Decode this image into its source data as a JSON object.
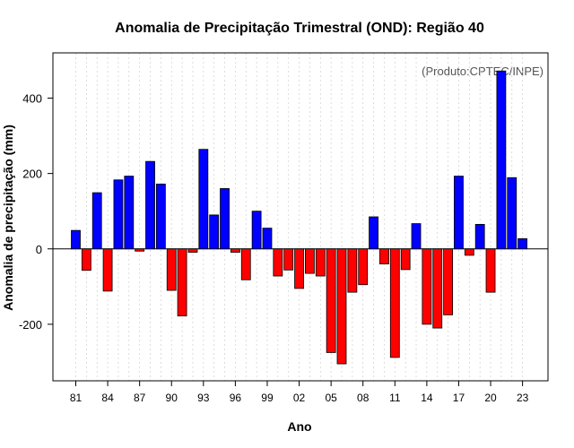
{
  "chart_data": {
    "type": "bar",
    "title": "Anomalia de Precipitação Trimestral (OND): Região 40",
    "xlabel": "Ano",
    "ylabel": "Anomalia de precipitação (mm)",
    "credit": "(Produto:CPTEC/INPE)",
    "ylim": [
      -350,
      520
    ],
    "y_ticks": [
      -200,
      0,
      200,
      400
    ],
    "x_tick_labels": [
      "81",
      "84",
      "87",
      "90",
      "93",
      "96",
      "99",
      "02",
      "05",
      "08",
      "11",
      "14",
      "17",
      "20",
      "23"
    ],
    "positive_color": "#0000ff",
    "negative_color": "#ff0000",
    "categories": [
      "1981",
      "1982",
      "1983",
      "1984",
      "1985",
      "1986",
      "1987",
      "1988",
      "1989",
      "1990",
      "1991",
      "1992",
      "1993",
      "1994",
      "1995",
      "1996",
      "1997",
      "1998",
      "1999",
      "2000",
      "2001",
      "2002",
      "2003",
      "2004",
      "2005",
      "2006",
      "2007",
      "2008",
      "2009",
      "2010",
      "2011",
      "2012",
      "2013",
      "2014",
      "2015",
      "2016",
      "2017",
      "2018",
      "2019",
      "2020",
      "2021",
      "2022",
      "2023"
    ],
    "values": [
      49,
      -57,
      149,
      -112,
      183,
      193,
      -6,
      232,
      172,
      -110,
      -178,
      -9,
      264,
      90,
      160,
      -9,
      -82,
      100,
      55,
      -72,
      -56,
      -105,
      -65,
      -72,
      -275,
      -305,
      -115,
      -95,
      85,
      -40,
      -288,
      -55,
      67,
      -200,
      -210,
      -175,
      193,
      -17,
      65,
      -115,
      472,
      189,
      27
    ]
  }
}
